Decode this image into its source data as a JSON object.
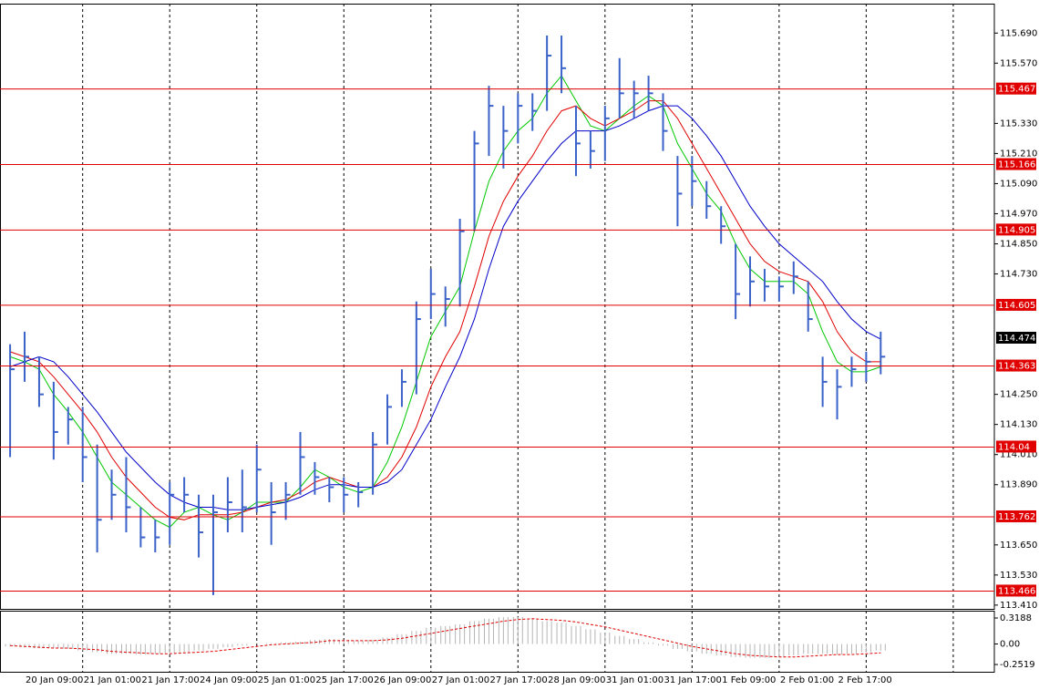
{
  "chart_data": [
    {
      "type": "candlestick",
      "categories": [
        null,
        "20 Jan 09:00",
        null,
        null,
        null,
        "21 Jan 01:00",
        null,
        null,
        null,
        "21 Jan 17:00",
        null,
        null,
        null,
        "24 Jan 09:00",
        null,
        null,
        null,
        "25 Jan 01:00",
        null,
        null,
        null,
        "25 Jan 17:00",
        null,
        null,
        null,
        "26 Jan 09:00",
        null,
        null,
        null,
        "27 Jan 01:00",
        null,
        null,
        null,
        "27 Jan 17:00",
        null,
        null,
        null,
        "28 Jan 09:00",
        null,
        null,
        null,
        "31 Jan 01:00",
        null,
        null,
        null,
        "31 Jan 17:00",
        null,
        null,
        null,
        "1 Feb 09:00",
        null,
        null,
        null,
        "2 Feb 01:00",
        null,
        null,
        null,
        "2 Feb 17:00",
        null,
        null,
        null
      ],
      "high": [
        114.45,
        114.5,
        114.4,
        114.3,
        114.2,
        114.2,
        114.05,
        113.95,
        114.0,
        113.8,
        113.75,
        113.9,
        113.92,
        113.85,
        113.85,
        113.92,
        113.95,
        114.05,
        113.9,
        113.9,
        114.1,
        113.98,
        113.92,
        113.92,
        113.9,
        114.1,
        114.25,
        114.35,
        114.62,
        114.75,
        114.68,
        114.95,
        115.3,
        115.48,
        115.4,
        115.45,
        115.45,
        115.68,
        115.68,
        115.4,
        115.3,
        115.4,
        115.59,
        115.5,
        115.52,
        115.45,
        115.2,
        115.2,
        115.1,
        115.0,
        114.85,
        114.8,
        114.75,
        114.72,
        114.78,
        114.7,
        114.4,
        114.35,
        114.4,
        114.42,
        114.5
      ],
      "low": [
        114.0,
        114.3,
        114.2,
        113.99,
        114.05,
        113.9,
        113.62,
        113.75,
        113.7,
        113.64,
        113.62,
        113.65,
        113.78,
        113.6,
        113.45,
        113.7,
        113.7,
        113.78,
        113.65,
        113.75,
        113.85,
        113.85,
        113.82,
        113.78,
        113.8,
        113.85,
        114.05,
        114.2,
        114.25,
        114.55,
        114.52,
        114.6,
        114.9,
        115.2,
        115.15,
        115.25,
        115.3,
        115.38,
        115.45,
        115.12,
        115.15,
        115.18,
        115.35,
        115.35,
        115.38,
        115.22,
        114.92,
        115.0,
        114.95,
        114.85,
        114.55,
        114.6,
        114.62,
        114.62,
        114.65,
        114.5,
        114.2,
        114.15,
        114.28,
        114.3,
        114.33
      ],
      "close": [
        114.35,
        114.4,
        114.25,
        114.1,
        114.15,
        114.0,
        113.75,
        113.85,
        113.8,
        113.68,
        113.68,
        113.85,
        113.85,
        113.7,
        113.78,
        113.82,
        113.8,
        113.95,
        113.78,
        113.85,
        114.0,
        113.92,
        113.88,
        113.85,
        113.86,
        114.05,
        114.2,
        114.3,
        114.55,
        114.65,
        114.63,
        114.9,
        115.25,
        115.4,
        115.3,
        115.4,
        115.38,
        115.6,
        115.55,
        115.25,
        115.22,
        115.35,
        115.45,
        115.45,
        115.45,
        115.3,
        115.05,
        115.1,
        115.0,
        114.92,
        114.65,
        114.7,
        114.68,
        114.68,
        114.72,
        114.55,
        114.3,
        114.28,
        114.35,
        114.38,
        114.4
      ],
      "color": "#3a62c8",
      "lines": [
        {
          "color": "#00c800",
          "values": [
            114.4,
            114.38,
            114.35,
            114.25,
            114.18,
            114.1,
            114.0,
            113.9,
            113.85,
            113.8,
            113.75,
            113.72,
            113.78,
            113.8,
            113.77,
            113.75,
            113.78,
            113.82,
            113.82,
            113.82,
            113.88,
            113.95,
            113.92,
            113.88,
            113.86,
            113.88,
            113.98,
            114.12,
            114.3,
            114.48,
            114.58,
            114.68,
            114.9,
            115.1,
            115.22,
            115.3,
            115.35,
            115.45,
            115.52,
            115.42,
            115.32,
            115.3,
            115.35,
            115.4,
            115.44,
            115.4,
            115.25,
            115.15,
            115.05,
            114.98,
            114.85,
            114.75,
            114.7,
            114.7,
            114.7,
            114.65,
            114.5,
            114.38,
            114.34,
            114.34,
            114.36
          ]
        },
        {
          "color": "#e00000",
          "values": [
            114.42,
            114.4,
            114.38,
            114.32,
            114.25,
            114.18,
            114.1,
            114.0,
            113.92,
            113.86,
            113.8,
            113.76,
            113.75,
            113.77,
            113.77,
            113.77,
            113.78,
            113.8,
            113.82,
            113.83,
            113.86,
            113.9,
            113.92,
            113.9,
            113.88,
            113.88,
            113.92,
            114.0,
            114.12,
            114.28,
            114.4,
            114.5,
            114.68,
            114.88,
            115.02,
            115.12,
            115.2,
            115.3,
            115.38,
            115.4,
            115.35,
            115.32,
            115.35,
            115.38,
            115.42,
            115.42,
            115.35,
            115.25,
            115.15,
            115.05,
            114.95,
            114.85,
            114.78,
            114.74,
            114.72,
            114.7,
            114.62,
            114.5,
            114.42,
            114.38,
            114.38
          ]
        },
        {
          "color": "#0000c8",
          "values": [
            114.36,
            114.38,
            114.4,
            114.38,
            114.32,
            114.25,
            114.18,
            114.1,
            114.02,
            113.96,
            113.9,
            113.85,
            113.82,
            113.8,
            113.8,
            113.79,
            113.79,
            113.8,
            113.81,
            113.82,
            113.84,
            113.87,
            113.89,
            113.89,
            113.88,
            113.88,
            113.9,
            113.95,
            114.05,
            114.15,
            114.28,
            114.4,
            114.55,
            114.75,
            114.92,
            115.02,
            115.1,
            115.18,
            115.25,
            115.3,
            115.3,
            115.3,
            115.32,
            115.35,
            115.38,
            115.4,
            115.4,
            115.35,
            115.28,
            115.2,
            115.1,
            115.0,
            114.92,
            114.85,
            114.8,
            114.75,
            114.7,
            114.62,
            114.55,
            114.5,
            114.47
          ]
        }
      ],
      "ylim": [
        113.395,
        115.8
      ],
      "yticks": [
        {
          "value": 115.69,
          "label": "115.690"
        },
        {
          "value": 115.57,
          "label": "115.570"
        },
        {
          "value": 115.33,
          "label": "115.330"
        },
        {
          "value": 115.21,
          "label": "115.210"
        },
        {
          "value": 115.09,
          "label": "115.090"
        },
        {
          "value": 114.97,
          "label": "114.970"
        },
        {
          "value": 114.85,
          "label": "114.850"
        },
        {
          "value": 114.73,
          "label": "114.730"
        },
        {
          "value": 114.25,
          "label": "114.250"
        },
        {
          "value": 114.13,
          "label": "114.130"
        },
        {
          "value": 114.01,
          "label": "114.010"
        },
        {
          "value": 113.89,
          "label": "113.890"
        },
        {
          "value": 113.65,
          "label": "113.650"
        },
        {
          "value": 113.53,
          "label": "113.530"
        },
        {
          "value": 113.41,
          "label": "113.410"
        }
      ],
      "levels": [
        115.467,
        115.166,
        114.905,
        114.605,
        114.363,
        114.04,
        113.762,
        113.466
      ],
      "level_color": "#e00000",
      "last_price": 114.474
    },
    {
      "type": "oscillator",
      "values": [
        -0.03,
        -0.04,
        -0.05,
        -0.05,
        -0.06,
        -0.08,
        -0.1,
        -0.12,
        -0.12,
        -0.13,
        -0.12,
        -0.11,
        -0.1,
        -0.08,
        -0.06,
        -0.04,
        -0.02,
        0,
        0.01,
        0.02,
        0.03,
        0.05,
        0.06,
        0.05,
        0.04,
        0.05,
        0.08,
        0.12,
        0.16,
        0.2,
        0.22,
        0.24,
        0.28,
        0.31,
        0.33,
        0.33,
        0.31,
        0.28,
        0.26,
        0.22,
        0.18,
        0.14,
        0.1,
        0.06,
        0.02,
        -0.02,
        -0.06,
        -0.09,
        -0.12,
        -0.14,
        -0.16,
        -0.17,
        -0.17,
        -0.16,
        -0.14,
        -0.12,
        -0.12,
        -0.13,
        -0.12,
        -0.1,
        -0.08
      ],
      "color": "#b4b4b4",
      "signal": {
        "color": "#e00000",
        "values": [
          -0.02,
          -0.03,
          -0.04,
          -0.05,
          -0.05,
          -0.06,
          -0.07,
          -0.09,
          -0.1,
          -0.11,
          -0.12,
          -0.12,
          -0.11,
          -0.1,
          -0.09,
          -0.07,
          -0.05,
          -0.03,
          -0.01,
          0,
          0.01,
          0.02,
          0.04,
          0.04,
          0.04,
          0.04,
          0.05,
          0.07,
          0.1,
          0.13,
          0.16,
          0.19,
          0.22,
          0.25,
          0.28,
          0.3,
          0.31,
          0.3,
          0.29,
          0.27,
          0.24,
          0.21,
          0.17,
          0.13,
          0.09,
          0.05,
          0.01,
          -0.03,
          -0.06,
          -0.09,
          -0.12,
          -0.14,
          -0.15,
          -0.16,
          -0.16,
          -0.15,
          -0.14,
          -0.13,
          -0.13,
          -0.12,
          -0.11
        ]
      },
      "ylim": [
        -0.341,
        0.386
      ],
      "yticks": [
        0.3188,
        {
          "value": 0,
          "label": "0.00"
        },
        -0.2519
      ]
    }
  ]
}
